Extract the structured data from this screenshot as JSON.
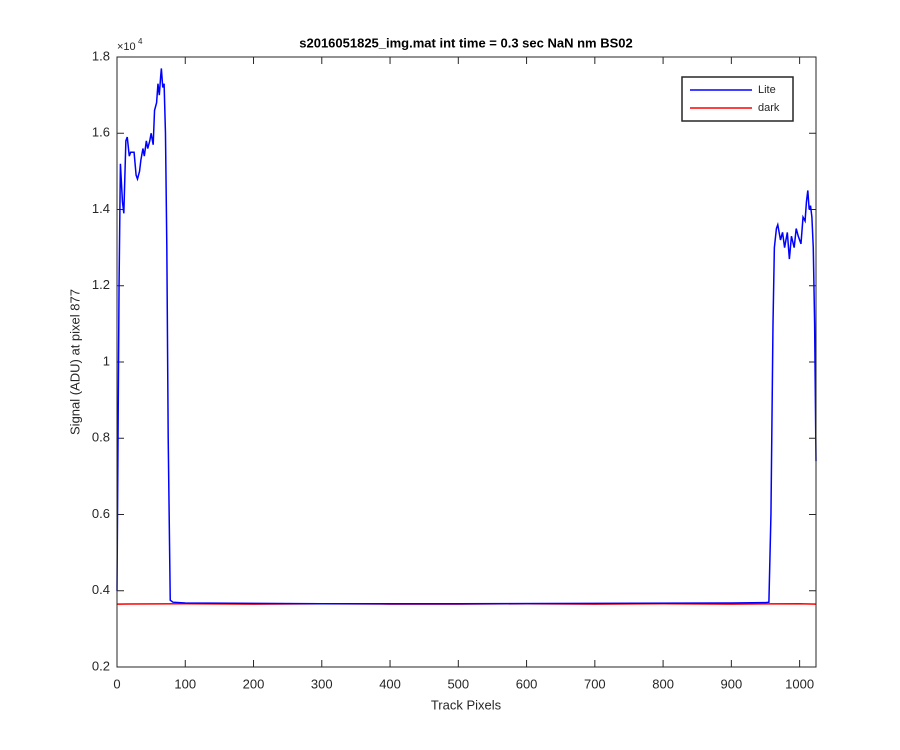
{
  "chart_data": {
    "type": "line",
    "title": "s2016051825_img.mat int time = 0.3 sec  NaN nm BS02",
    "x_label": "Track Pixels",
    "y_label": "Signal (ADU) at pixel 877",
    "y_exponent_base": "×10",
    "y_exponent": "4",
    "xlim": [
      0,
      1024
    ],
    "xticks": [
      0,
      100,
      200,
      300,
      400,
      500,
      600,
      700,
      800,
      900,
      1000
    ],
    "ylim": [
      0.2,
      1.8
    ],
    "yticks": [
      0.2,
      0.4,
      0.6,
      0.8,
      1,
      1.2,
      1.4,
      1.6,
      1.8
    ],
    "grid": false,
    "legend": "upper right",
    "series": [
      {
        "name": "Lite",
        "color": "#0000ff",
        "x": [
          0,
          3,
          5,
          8,
          10,
          13,
          15,
          18,
          20,
          25,
          28,
          30,
          33,
          35,
          38,
          40,
          43,
          45,
          48,
          50,
          53,
          55,
          58,
          60,
          62,
          64,
          65,
          67,
          69,
          71,
          73,
          75,
          78,
          82,
          100,
          300,
          500,
          700,
          900,
          950,
          955,
          958,
          961,
          963,
          966,
          968,
          972,
          975,
          978,
          982,
          985,
          988,
          992,
          995,
          998,
          1002,
          1005,
          1008,
          1010,
          1012,
          1014,
          1016,
          1018,
          1020,
          1022,
          1024
        ],
        "values": [
          0.4,
          1.2,
          1.52,
          1.42,
          1.39,
          1.58,
          1.59,
          1.54,
          1.55,
          1.55,
          1.49,
          1.48,
          1.5,
          1.53,
          1.56,
          1.54,
          1.58,
          1.56,
          1.58,
          1.6,
          1.57,
          1.66,
          1.68,
          1.73,
          1.7,
          1.75,
          1.77,
          1.72,
          1.73,
          1.6,
          1.3,
          0.8,
          0.375,
          0.37,
          0.368,
          0.366,
          0.366,
          0.367,
          0.368,
          0.369,
          0.37,
          0.6,
          1.1,
          1.3,
          1.35,
          1.36,
          1.32,
          1.34,
          1.3,
          1.34,
          1.27,
          1.33,
          1.3,
          1.35,
          1.33,
          1.31,
          1.38,
          1.37,
          1.42,
          1.45,
          1.4,
          1.41,
          1.38,
          1.3,
          1.1,
          0.74
        ]
      },
      {
        "name": "dark",
        "color": "#ff0000",
        "x": [
          0,
          100,
          200,
          300,
          400,
          500,
          600,
          700,
          800,
          900,
          1000,
          1024
        ],
        "values": [
          0.365,
          0.366,
          0.365,
          0.366,
          0.365,
          0.365,
          0.366,
          0.365,
          0.366,
          0.365,
          0.366,
          0.365
        ]
      }
    ]
  }
}
